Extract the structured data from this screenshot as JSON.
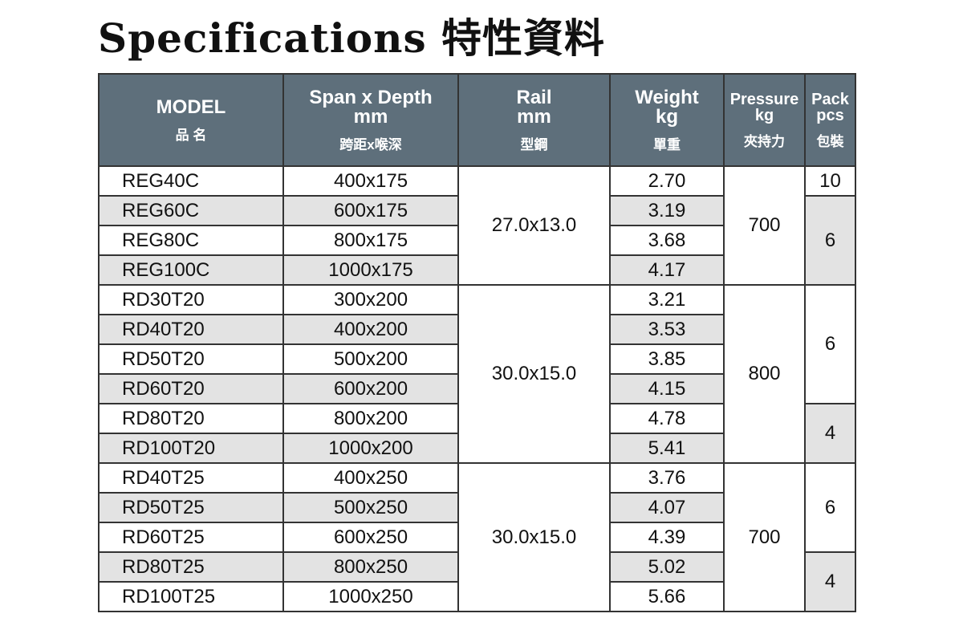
{
  "title": "Specifications 特性資料",
  "header_color": "#5e6f7b",
  "columns": [
    {
      "en": [
        "MODEL"
      ],
      "zh": "品 名"
    },
    {
      "en": [
        "Span x Depth",
        "mm"
      ],
      "zh": "跨距x喉深"
    },
    {
      "en": [
        "Rail",
        "mm"
      ],
      "zh": "型鋼"
    },
    {
      "en": [
        "Weight",
        "kg"
      ],
      "zh": "單重"
    },
    {
      "en": [
        "Pressure",
        "kg"
      ],
      "zh": "夾持力"
    },
    {
      "en": [
        "Pack",
        "pcs"
      ],
      "zh": "包裝"
    }
  ],
  "rows": [
    {
      "model": "REG40C",
      "span": "400x175",
      "weight": "2.70"
    },
    {
      "model": "REG60C",
      "span": "600x175",
      "weight": "3.19"
    },
    {
      "model": "REG80C",
      "span": "800x175",
      "weight": "3.68"
    },
    {
      "model": "REG100C",
      "span": "1000x175",
      "weight": "4.17"
    },
    {
      "model": "RD30T20",
      "span": "300x200",
      "weight": "3.21"
    },
    {
      "model": "RD40T20",
      "span": "400x200",
      "weight": "3.53"
    },
    {
      "model": "RD50T20",
      "span": "500x200",
      "weight": "3.85"
    },
    {
      "model": "RD60T20",
      "span": "600x200",
      "weight": "4.15"
    },
    {
      "model": "RD80T20",
      "span": "800x200",
      "weight": "4.78"
    },
    {
      "model": "RD100T20",
      "span": "1000x200",
      "weight": "5.41"
    },
    {
      "model": "RD40T25",
      "span": "400x250",
      "weight": "3.76"
    },
    {
      "model": "RD50T25",
      "span": "500x250",
      "weight": "4.07"
    },
    {
      "model": "RD60T25",
      "span": "600x250",
      "weight": "4.39"
    },
    {
      "model": "RD80T25",
      "span": "800x250",
      "weight": "5.02"
    },
    {
      "model": "RD100T25",
      "span": "1000x250",
      "weight": "5.66"
    }
  ],
  "rail_groups": [
    {
      "value": "27.0x13.0",
      "start": 0,
      "span": 4
    },
    {
      "value": "30.0x15.0",
      "start": 4,
      "span": 6
    },
    {
      "value": "30.0x15.0",
      "start": 10,
      "span": 5
    }
  ],
  "pressure_groups": [
    {
      "value": "700",
      "start": 0,
      "span": 4
    },
    {
      "value": "800",
      "start": 4,
      "span": 6
    },
    {
      "value": "700",
      "start": 10,
      "span": 5
    }
  ],
  "pack_groups": [
    {
      "value": "10",
      "start": 0,
      "span": 1,
      "shaded": false
    },
    {
      "value": "6",
      "start": 1,
      "span": 3,
      "shaded": true
    },
    {
      "value": "6",
      "start": 4,
      "span": 4,
      "shaded": false
    },
    {
      "value": "4",
      "start": 8,
      "span": 2,
      "shaded": true
    },
    {
      "value": "6",
      "start": 10,
      "span": 3,
      "shaded": false
    },
    {
      "value": "4",
      "start": 13,
      "span": 2,
      "shaded": true
    }
  ]
}
